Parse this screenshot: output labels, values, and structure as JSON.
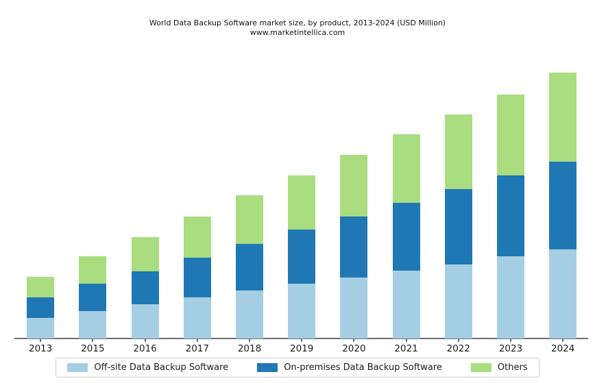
{
  "title": "World Data Backup Software market size, by product, 2013-2024 (USD Million)",
  "subtitle": "www.marketintellica.com",
  "chart_data": {
    "type": "bar",
    "stacked": true,
    "title": "World Data Backup Software market size, by product, 2013-2024 (USD Million)",
    "subtitle": "www.marketintellica.com",
    "xlabel": "",
    "ylabel": "",
    "categories": [
      "2013",
      "2015",
      "2016",
      "2017",
      "2018",
      "2019",
      "2020",
      "2021",
      "2022",
      "2023",
      "2024"
    ],
    "series": [
      {
        "name": "Off-site Data Backup Software",
        "color": "#a6cee3",
        "values": [
          30,
          40,
          50,
          60,
          70,
          80,
          89,
          99,
          108,
          120,
          130
        ]
      },
      {
        "name": "On-premises Data Backup Software",
        "color": "#1f78b4",
        "values": [
          30,
          40,
          48,
          58,
          68,
          79,
          89,
          99,
          110,
          118,
          128
        ]
      },
      {
        "name": "Others",
        "color": "#aadc80",
        "values": [
          30,
          40,
          50,
          60,
          71,
          79,
          90,
          100,
          109,
          118,
          130
        ]
      }
    ],
    "stack_totals": [
      90,
      120,
      148,
      178,
      209,
      238,
      268,
      298,
      327,
      356,
      388
    ],
    "values_unit": "relative height (chart shows no y-axis ticks or value labels)",
    "y_axis_visible": false,
    "grid": false,
    "legend_position": "bottom"
  },
  "axis": {
    "line_color": "#6e6e6e"
  },
  "legend_border_color": "#cccccc"
}
